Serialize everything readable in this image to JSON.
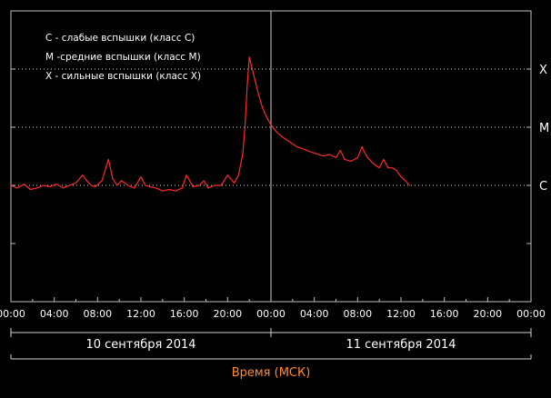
{
  "chart_data": {
    "type": "line",
    "title": "",
    "xlabel": "Время (МСК)",
    "ylabel": "",
    "x_unit": "hours",
    "xlim": [
      "2014-09-10 00:00",
      "2014-09-12 00:00"
    ],
    "x_tick_labels": [
      "00:00",
      "04:00",
      "08:00",
      "12:00",
      "16:00",
      "20:00",
      "00:00",
      "04:00",
      "08:00",
      "12:00",
      "16:00",
      "20:00",
      "00:00"
    ],
    "date_labels": [
      "10 сентября 2014",
      "11 сентября 2014"
    ],
    "y_scale": "log",
    "levels": [
      {
        "label": "X",
        "value": 0.0001
      },
      {
        "label": "M",
        "value": 1e-05
      },
      {
        "label": "C",
        "value": 1e-06
      }
    ],
    "ylim": [
      1e-08,
      0.001
    ],
    "legend": [
      {
        "key": "C",
        "text": "C - слабые вспышки (класс C)"
      },
      {
        "key": "M",
        "text": "M -средние вспышки (класс M)"
      },
      {
        "key": "X",
        "text": "X - сильные вспышки (класс X)"
      }
    ],
    "legend_position": "top-left",
    "grid": "dotted lines at C, M, X levels",
    "series": [
      {
        "color": "#ff2a2a",
        "x": [
          "2014-09-10 00:00",
          "2014-09-10 00:36",
          "2014-09-10 01:12",
          "2014-09-10 01:48",
          "2014-09-10 02:24",
          "2014-09-10 03:00",
          "2014-09-10 03:36",
          "2014-09-10 04:12",
          "2014-09-10 04:48",
          "2014-09-10 05:24",
          "2014-09-10 06:00",
          "2014-09-10 06:36",
          "2014-09-10 07:00",
          "2014-09-10 07:24",
          "2014-09-10 07:48",
          "2014-09-10 08:24",
          "2014-09-10 09:00",
          "2014-09-10 09:24",
          "2014-09-10 09:48",
          "2014-09-10 10:12",
          "2014-09-10 10:48",
          "2014-09-10 11:24",
          "2014-09-10 12:00",
          "2014-09-10 12:24",
          "2014-09-10 12:48",
          "2014-09-10 13:24",
          "2014-09-10 14:00",
          "2014-09-10 14:36",
          "2014-09-10 15:12",
          "2014-09-10 15:48",
          "2014-09-10 16:12",
          "2014-09-10 16:48",
          "2014-09-10 17:24",
          "2014-09-10 17:48",
          "2014-09-10 18:12",
          "2014-09-10 18:48",
          "2014-09-10 19:24",
          "2014-09-10 20:00",
          "2014-09-10 20:36",
          "2014-09-10 21:00",
          "2014-09-10 21:24",
          "2014-09-10 21:36",
          "2014-09-10 21:48",
          "2014-09-10 22:00",
          "2014-09-10 22:24",
          "2014-09-10 22:48",
          "2014-09-10 23:12",
          "2014-09-10 23:36",
          "2014-09-11 00:00",
          "2014-09-11 00:36",
          "2014-09-11 01:12",
          "2014-09-11 01:48",
          "2014-09-11 02:24",
          "2014-09-11 03:00",
          "2014-09-11 03:36",
          "2014-09-11 04:12",
          "2014-09-11 04:48",
          "2014-09-11 05:24",
          "2014-09-11 06:00",
          "2014-09-11 06:24",
          "2014-09-11 06:48",
          "2014-09-11 07:24",
          "2014-09-11 08:00",
          "2014-09-11 08:24",
          "2014-09-11 08:48",
          "2014-09-11 09:24",
          "2014-09-11 10:00",
          "2014-09-11 10:24",
          "2014-09-11 10:48",
          "2014-09-11 11:12",
          "2014-09-11 11:36",
          "2014-09-11 12:00",
          "2014-09-11 12:24",
          "2014-09-11 12:48"
        ],
        "y": [
          1e-06,
          9e-07,
          1.05e-06,
          8.5e-07,
          9e-07,
          1e-06,
          9.5e-07,
          1.05e-06,
          9e-07,
          1e-06,
          1.1e-06,
          1.5e-06,
          1.2e-06,
          1e-06,
          9.5e-07,
          1.2e-06,
          2.8e-06,
          1.3e-06,
          1e-06,
          1.2e-06,
          1e-06,
          9e-07,
          1.4e-06,
          1e-06,
          9.5e-07,
          9e-07,
          8e-07,
          8.5e-07,
          8e-07,
          9e-07,
          1.5e-06,
          9.5e-07,
          1e-06,
          1.2e-06,
          9e-07,
          1e-06,
          1e-06,
          1.5e-06,
          1.1e-06,
          1.5e-06,
          3.5e-06,
          1e-05,
          5e-05,
          0.00016,
          8e-05,
          4e-05,
          2.2e-05,
          1.5e-05,
          1.1e-05,
          8e-06,
          6.5e-06,
          5.5e-06,
          4.6e-06,
          4.2e-06,
          3.8e-06,
          3.5e-06,
          3.2e-06,
          3.4e-06,
          3e-06,
          4e-06,
          2.8e-06,
          2.6e-06,
          3e-06,
          4.6e-06,
          3.2e-06,
          2.4e-06,
          2e-06,
          2.8e-06,
          2e-06,
          2e-06,
          1.8e-06,
          1.4e-06,
          1.2e-06,
          1e-06
        ]
      }
    ]
  }
}
